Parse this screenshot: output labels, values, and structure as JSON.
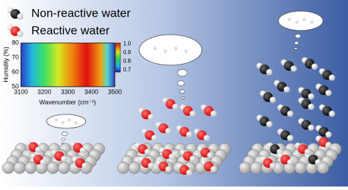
{
  "legend": {
    "items": [
      {
        "label": "Non-reactive water"
      },
      {
        "label": "Reactive water"
      }
    ]
  },
  "inset": {
    "ylabel": "Humidity (%)",
    "xlabel": "Wavenumber (cm⁻¹)",
    "yticks": [
      "50",
      "60",
      "70",
      "80"
    ],
    "xticks": [
      "3100",
      "3200",
      "3300",
      "3400",
      "3500"
    ],
    "colorbar_ticks": [
      "0.7",
      "0.8",
      "0.9",
      "1.0"
    ]
  }
}
